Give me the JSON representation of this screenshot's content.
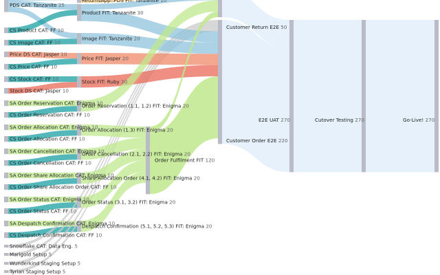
{
  "chart_data": {
    "type": "sankey",
    "nodes": [
      {
        "id": "pds_cat",
        "name": "PDS CAT: Tanzanite",
        "value": 25
      },
      {
        "id": "cs_product",
        "name": "CS Product CAT: FF",
        "value": 10
      },
      {
        "id": "cs_image",
        "name": "CS Image CAT: FF",
        "value": 10
      },
      {
        "id": "price_ds",
        "name": "Price DS CAT: Jasper",
        "value": 10
      },
      {
        "id": "cs_price",
        "name": "CS Price CAT: FF",
        "value": 10
      },
      {
        "id": "cs_stock",
        "name": "CS Stock CAT: FF",
        "value": 10
      },
      {
        "id": "stock_ds",
        "name": "Stock DS CAT: Jasper",
        "value": 10
      },
      {
        "id": "sa_res",
        "name": "SA Order Reservation CAT: Enigma",
        "value": 10
      },
      {
        "id": "cs_res",
        "name": "CS Order Reservation CAT: FF",
        "value": 10
      },
      {
        "id": "sa_alloc",
        "name": "SA Order Allocation CAT: Enigma",
        "value": 10
      },
      {
        "id": "cs_alloc",
        "name": "CS Order Allocation CAT: FF",
        "value": 10
      },
      {
        "id": "sa_cancel",
        "name": "SA Order Cancellation CAT: Enigma",
        "value": 10
      },
      {
        "id": "cs_cancel",
        "name": "CS Order Cancellation CAT: FF",
        "value": 10
      },
      {
        "id": "sa_share",
        "name": "SA Order Share Allocation CAT: Enigma",
        "value": 10
      },
      {
        "id": "cs_share",
        "name": "CS Order Share Allocation Order CAT: FF",
        "value": 10
      },
      {
        "id": "sa_status",
        "name": "SA Order Status CAT: Enigma",
        "value": 10
      },
      {
        "id": "cs_status",
        "name": "CS Order Status CAT: FF",
        "value": 10
      },
      {
        "id": "sa_desp",
        "name": "SA Despatch Confirmation CAT: Enigma",
        "value": 10
      },
      {
        "id": "cs_desp",
        "name": "CS Despatch Confirmation CAT: FF",
        "value": 10
      },
      {
        "id": "snowflake",
        "name": "Snowflake CAT: Data Eng.",
        "value": 5
      },
      {
        "id": "marigold",
        "name": "Marigold Setup",
        "value": 5
      },
      {
        "id": "wunderkind",
        "name": "Wunderkind Staging Setup",
        "value": 5
      },
      {
        "id": "tyrian",
        "name": "Tyrian Staging Setup",
        "value": 5
      },
      {
        "id": "returns_fit",
        "name": "ReturnsApp::PDS FIT: Tanzanite",
        "value": 10
      },
      {
        "id": "product_fit",
        "name": "Product FIT: Tanzanite",
        "value": 30
      },
      {
        "id": "image_fit",
        "name": "Image FIT: Tanzanite",
        "value": 20
      },
      {
        "id": "price_fit",
        "name": "Price FIT: Jasper",
        "value": 20
      },
      {
        "id": "stock_fit",
        "name": "Stock FIT: Ruby",
        "value": 20
      },
      {
        "id": "res_fit",
        "name": "Order Reservation (1.1, 1.2) FIT: Enigma",
        "value": 20
      },
      {
        "id": "alloc_fit",
        "name": "Order Allocation (1.3) FIT: Enigma",
        "value": 20
      },
      {
        "id": "cancel_fit",
        "name": "Order Cancellation (2.1, 2.2) FIT: Enigma",
        "value": 20
      },
      {
        "id": "share_fit",
        "name": "Share Allocation Order (4.1, 4.2) FIT: Enigma",
        "value": 20
      },
      {
        "id": "status_fit",
        "name": "Order Status (3.1, 3.2) FIT: Enigma",
        "value": 20
      },
      {
        "id": "desp_fit",
        "name": "Despatch Confirmation (5.1, 5.2, 5.3) FIT: Enigma",
        "value": 20
      },
      {
        "id": "fulfil_fit",
        "name": "Order Fulfilment FIT",
        "value": 120
      },
      {
        "id": "cust_return",
        "name": "Customer Return E2E",
        "value": 50
      },
      {
        "id": "cust_order",
        "name": "Customer Order E2E",
        "value": 220
      },
      {
        "id": "e2e_uat",
        "name": "E2E UAT",
        "value": 270
      },
      {
        "id": "cutover",
        "name": "Cutover Testing",
        "value": 270
      },
      {
        "id": "golive",
        "name": "Go-Live!",
        "value": 270
      }
    ],
    "links": [
      {
        "source": "pds_cat",
        "target": "returns_fit",
        "value": 5
      },
      {
        "source": "pds_cat",
        "target": "product_fit",
        "value": 10
      },
      {
        "source": "pds_cat",
        "target": "image_fit",
        "value": 10
      },
      {
        "source": "cs_product",
        "target": "product_fit",
        "value": 10
      },
      {
        "source": "cs_image",
        "target": "image_fit",
        "value": 10
      },
      {
        "source": "price_ds",
        "target": "price_fit",
        "value": 10
      },
      {
        "source": "cs_price",
        "target": "price_fit",
        "value": 10
      },
      {
        "source": "cs_stock",
        "target": "stock_fit",
        "value": 10
      },
      {
        "source": "stock_ds",
        "target": "stock_fit",
        "value": 10
      },
      {
        "source": "sa_res",
        "target": "res_fit",
        "value": 10
      },
      {
        "source": "cs_res",
        "target": "res_fit",
        "value": 10
      },
      {
        "source": "sa_alloc",
        "target": "alloc_fit",
        "value": 10
      },
      {
        "source": "cs_alloc",
        "target": "alloc_fit",
        "value": 10
      },
      {
        "source": "sa_cancel",
        "target": "cancel_fit",
        "value": 10
      },
      {
        "source": "cs_cancel",
        "target": "cancel_fit",
        "value": 10
      },
      {
        "source": "sa_share",
        "target": "share_fit",
        "value": 10
      },
      {
        "source": "cs_share",
        "target": "share_fit",
        "value": 10
      },
      {
        "source": "sa_status",
        "target": "status_fit",
        "value": 10
      },
      {
        "source": "cs_status",
        "target": "status_fit",
        "value": 10
      },
      {
        "source": "sa_desp",
        "target": "desp_fit",
        "value": 10
      },
      {
        "source": "cs_desp",
        "target": "desp_fit",
        "value": 10
      },
      {
        "source": "snowflake",
        "target": "cust_order",
        "value": 5
      },
      {
        "source": "marigold",
        "target": "cust_order",
        "value": 5
      },
      {
        "source": "wunderkind",
        "target": "cust_order",
        "value": 5
      },
      {
        "source": "tyrian",
        "target": "cust_order",
        "value": 5
      },
      {
        "source": "returns_fit",
        "target": "cust_return",
        "value": 10
      },
      {
        "source": "product_fit",
        "target": "cust_return",
        "value": 10
      },
      {
        "source": "product_fit",
        "target": "cust_order",
        "value": 20
      },
      {
        "source": "image_fit",
        "target": "cust_order",
        "value": 20
      },
      {
        "source": "price_fit",
        "target": "cust_order",
        "value": 20
      },
      {
        "source": "stock_fit",
        "target": "cust_order",
        "value": 20
      },
      {
        "source": "res_fit",
        "target": "cust_return",
        "value": 20
      },
      {
        "source": "alloc_fit",
        "target": "fulfil_fit",
        "value": 20
      },
      {
        "source": "cancel_fit",
        "target": "fulfil_fit",
        "value": 20
      },
      {
        "source": "share_fit",
        "target": "fulfil_fit",
        "value": 20
      },
      {
        "source": "status_fit",
        "target": "fulfil_fit",
        "value": 20
      },
      {
        "source": "desp_fit",
        "target": "fulfil_fit",
        "value": 20
      },
      {
        "source": "fulfil_fit",
        "target": "cust_return",
        "value": 10
      },
      {
        "source": "fulfil_fit",
        "target": "cust_order",
        "value": 110
      },
      {
        "source": "cust_return",
        "target": "e2e_uat",
        "value": 50
      },
      {
        "source": "cust_order",
        "target": "e2e_uat",
        "value": 220
      },
      {
        "source": "e2e_uat",
        "target": "cutover",
        "value": 270
      },
      {
        "source": "cutover",
        "target": "golive",
        "value": 270
      }
    ],
    "colors": {
      "node": "#b9bcc6",
      "tanzanite": "#8fc3dc",
      "product_cs": "#1b9fa3",
      "jasper": "#ef8a6a",
      "ruby": "#e86a57",
      "enigma": "#bfe88c",
      "ff": "#1b9fa3",
      "neutral": "#c9c9c9",
      "fit_out": "#dedede",
      "e2e": "#e6f1fb",
      "return_top": "#fcd48e"
    }
  }
}
